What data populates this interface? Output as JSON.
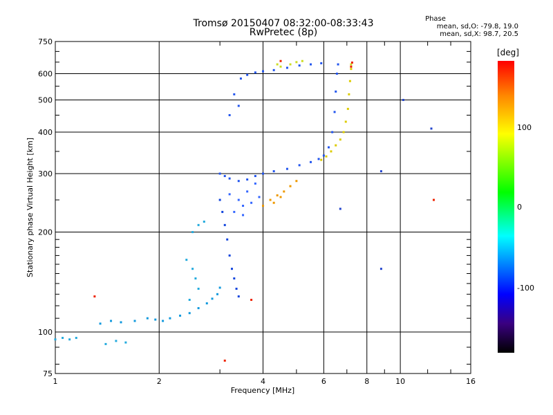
{
  "header": {
    "title_line1": "Tromsø 20150407 08:32:00-08:33:43",
    "title_line2": "RwPretec (8p)",
    "phase_title": "Phase",
    "phase_o": "mean, sd,O: -79.8, 19.0",
    "phase_x": "mean, sd,X:  98.7, 20.5"
  },
  "colorbar": {
    "title": "[deg]",
    "labels": [
      "100",
      "0",
      "-100"
    ],
    "range": [
      -180,
      180
    ]
  },
  "chart_data": {
    "type": "scatter",
    "title": "Tromsø 20150407 08:32:00-08:33:43",
    "subtitle": "RwPretec (8p)",
    "xlabel": "Frequency [MHz]",
    "ylabel": "Stationary phase Virtual Height [km]",
    "x_scale": "log",
    "y_scale": "log",
    "xlim": [
      1,
      16
    ],
    "ylim": [
      75,
      750
    ],
    "x_ticks": [
      1,
      2,
      4,
      6,
      8,
      10,
      16
    ],
    "x_tick_labels": [
      "1",
      "2",
      "4",
      "6",
      "8",
      "10",
      "16"
    ],
    "y_ticks": [
      75,
      100,
      200,
      300,
      400,
      500,
      600,
      750
    ],
    "y_tick_labels": [
      "75",
      "100",
      "200",
      "300",
      "400",
      "500",
      "600",
      "750"
    ],
    "grid": true,
    "series": [
      {
        "color": "#2255ee",
        "points": [
          [
            3.45,
            580
          ],
          [
            3.6,
            595
          ],
          [
            3.8,
            605
          ],
          [
            4.0,
            610
          ],
          [
            4.3,
            615
          ],
          [
            4.7,
            625
          ],
          [
            5.1,
            635
          ],
          [
            5.5,
            640
          ],
          [
            5.9,
            645
          ],
          [
            3.3,
            520
          ],
          [
            3.4,
            480
          ],
          [
            3.2,
            450
          ]
        ]
      },
      {
        "color": "#2255ee",
        "points": [
          [
            3.0,
            300
          ],
          [
            3.1,
            295
          ],
          [
            3.2,
            290
          ],
          [
            3.4,
            285
          ],
          [
            3.6,
            288
          ],
          [
            3.8,
            295
          ],
          [
            4.0,
            300
          ],
          [
            4.3,
            305
          ],
          [
            4.7,
            310
          ],
          [
            5.1,
            318
          ],
          [
            5.5,
            325
          ],
          [
            5.8,
            332
          ],
          [
            6.0,
            340
          ],
          [
            6.2,
            360
          ],
          [
            6.35,
            400
          ],
          [
            6.45,
            460
          ],
          [
            6.5,
            530
          ],
          [
            6.55,
            600
          ],
          [
            6.6,
            640
          ]
        ]
      },
      {
        "color": "#1144dd",
        "points": [
          [
            3.0,
            250
          ],
          [
            3.05,
            230
          ],
          [
            3.1,
            210
          ],
          [
            3.15,
            190
          ],
          [
            3.2,
            170
          ],
          [
            3.25,
            155
          ],
          [
            3.3,
            145
          ],
          [
            3.35,
            135
          ],
          [
            3.4,
            128
          ]
        ]
      },
      {
        "color": "#3366ff",
        "points": [
          [
            3.2,
            260
          ],
          [
            3.4,
            250
          ],
          [
            3.6,
            265
          ],
          [
            3.8,
            280
          ],
          [
            3.5,
            240
          ],
          [
            3.7,
            245
          ],
          [
            3.9,
            255
          ],
          [
            3.3,
            230
          ],
          [
            3.5,
            225
          ]
        ]
      },
      {
        "color": "#1199dd",
        "points": [
          [
            1.35,
            106
          ],
          [
            1.45,
            108
          ],
          [
            1.55,
            107
          ],
          [
            1.7,
            108
          ],
          [
            1.85,
            110
          ],
          [
            1.95,
            109
          ],
          [
            2.05,
            108
          ],
          [
            2.15,
            110
          ],
          [
            2.3,
            112
          ],
          [
            2.45,
            114
          ],
          [
            2.6,
            118
          ],
          [
            2.75,
            122
          ],
          [
            2.85,
            126
          ],
          [
            2.95,
            130
          ],
          [
            3.0,
            136
          ]
        ]
      },
      {
        "color": "#22aadd",
        "points": [
          [
            1.0,
            95
          ],
          [
            1.05,
            96
          ],
          [
            1.1,
            95
          ],
          [
            1.15,
            96
          ],
          [
            1.4,
            92
          ],
          [
            1.5,
            94
          ],
          [
            1.6,
            93
          ],
          [
            2.5,
            200
          ],
          [
            2.6,
            210
          ],
          [
            2.7,
            215
          ],
          [
            2.4,
            165
          ],
          [
            2.5,
            155
          ],
          [
            2.55,
            145
          ],
          [
            2.6,
            135
          ],
          [
            2.45,
            125
          ]
        ]
      },
      {
        "color": "#ee9900",
        "points": [
          [
            4.0,
            240
          ],
          [
            4.2,
            250
          ],
          [
            4.4,
            258
          ],
          [
            4.6,
            265
          ],
          [
            4.8,
            275
          ],
          [
            5.0,
            285
          ],
          [
            4.3,
            245
          ],
          [
            4.5,
            255
          ]
        ]
      },
      {
        "color": "#ddcc00",
        "points": [
          [
            5.9,
            330
          ],
          [
            6.1,
            338
          ],
          [
            6.3,
            350
          ],
          [
            6.5,
            365
          ],
          [
            6.7,
            380
          ],
          [
            6.85,
            400
          ],
          [
            6.95,
            430
          ],
          [
            7.05,
            470
          ],
          [
            7.1,
            520
          ],
          [
            7.15,
            570
          ],
          [
            7.2,
            620
          ]
        ]
      },
      {
        "color": "#ccdd22",
        "points": [
          [
            4.8,
            640
          ],
          [
            5.0,
            650
          ],
          [
            5.2,
            655
          ],
          [
            4.5,
            630
          ],
          [
            4.4,
            640
          ],
          [
            7.2,
            640
          ]
        ]
      },
      {
        "color": "#ee2200",
        "points": [
          [
            7.25,
            648
          ],
          [
            4.5,
            655
          ],
          [
            7.2,
            630
          ],
          [
            3.7,
            125
          ],
          [
            1.3,
            128
          ],
          [
            3.1,
            82
          ],
          [
            12.5,
            250
          ]
        ]
      },
      {
        "color": "#2244cc",
        "points": [
          [
            8.8,
            155
          ],
          [
            10.2,
            500
          ],
          [
            8.8,
            305
          ],
          [
            6.7,
            235
          ],
          [
            12.3,
            410
          ]
        ]
      }
    ]
  }
}
